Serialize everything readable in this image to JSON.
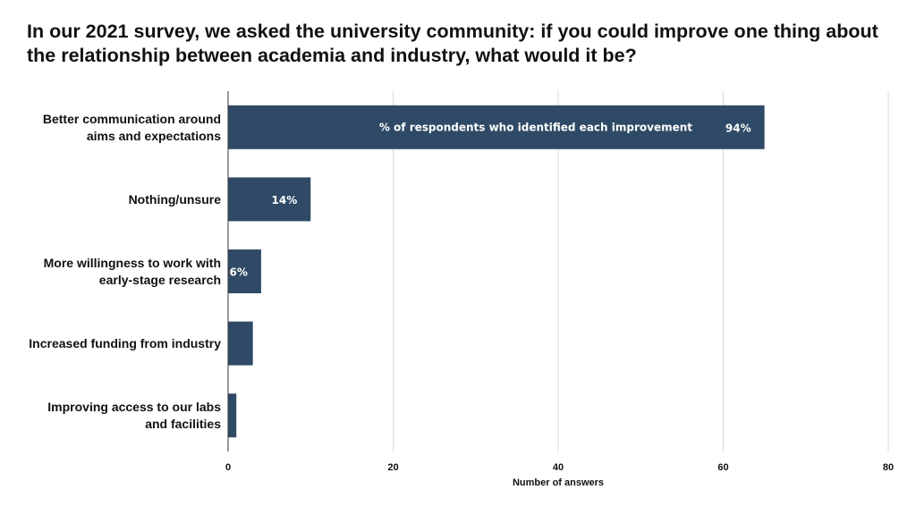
{
  "title_lines": [
    "In our 2021 survey, we asked the university community: if you could improve one thing about",
    "the relationship between academia and industry, what would it be?"
  ],
  "chart_data": {
    "type": "bar",
    "orientation": "horizontal",
    "title": "In our 2021 survey, we asked the university community: if you could improve one thing about the relationship between academia and industry, what would it be?",
    "xlabel": "Number of answers",
    "ylabel": "",
    "xlim": [
      0,
      80
    ],
    "x_ticks": [
      0,
      20,
      40,
      60,
      80
    ],
    "grid": "vertical",
    "bar_color": "#2e4a66",
    "series_label": "% of respondents who identified each improvement",
    "categories": [
      [
        "Better communication around",
        "aims and expectations"
      ],
      [
        "Nothing/unsure"
      ],
      [
        "More willingness to work with",
        "early-stage research"
      ],
      [
        "Increased funding from industry"
      ],
      [
        "Improving access to our labs",
        "and facilities"
      ]
    ],
    "values": [
      65,
      10,
      4,
      3,
      1
    ],
    "data_labels": [
      "94%",
      "14%",
      "6%",
      "",
      ""
    ]
  }
}
